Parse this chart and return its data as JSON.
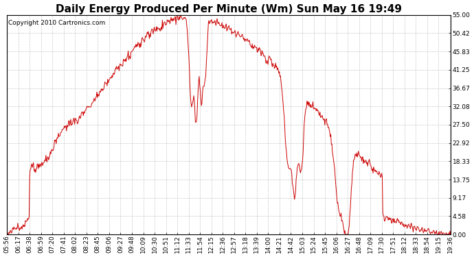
{
  "title": "Daily Energy Produced Per Minute (Wm) Sun May 16 19:49",
  "copyright": "Copyright 2010 Cartronics.com",
  "line_color": "#cc0000",
  "bg_color": "#ffffff",
  "plot_bg_color": "#ffffff",
  "grid_color": "#bbbbbb",
  "ylim": [
    0.0,
    55.0
  ],
  "yticks": [
    0.0,
    4.58,
    9.17,
    13.75,
    18.33,
    22.92,
    27.5,
    32.08,
    36.67,
    41.25,
    45.83,
    50.42,
    55.0
  ],
  "xtick_labels": [
    "05:56",
    "06:17",
    "06:38",
    "06:59",
    "07:20",
    "07:41",
    "08:02",
    "08:23",
    "08:45",
    "09:06",
    "09:27",
    "09:48",
    "10:09",
    "10:30",
    "10:51",
    "11:12",
    "11:33",
    "11:54",
    "12:15",
    "12:36",
    "12:57",
    "13:18",
    "13:39",
    "14:00",
    "14:21",
    "14:42",
    "15:03",
    "15:24",
    "15:45",
    "16:06",
    "16:27",
    "16:48",
    "17:09",
    "17:30",
    "17:51",
    "18:12",
    "18:33",
    "18:54",
    "19:15",
    "19:36"
  ],
  "title_fontsize": 11,
  "copyright_fontsize": 6.5,
  "tick_fontsize": 6.5,
  "figwidth": 6.9,
  "figheight": 3.75,
  "dpi": 100
}
